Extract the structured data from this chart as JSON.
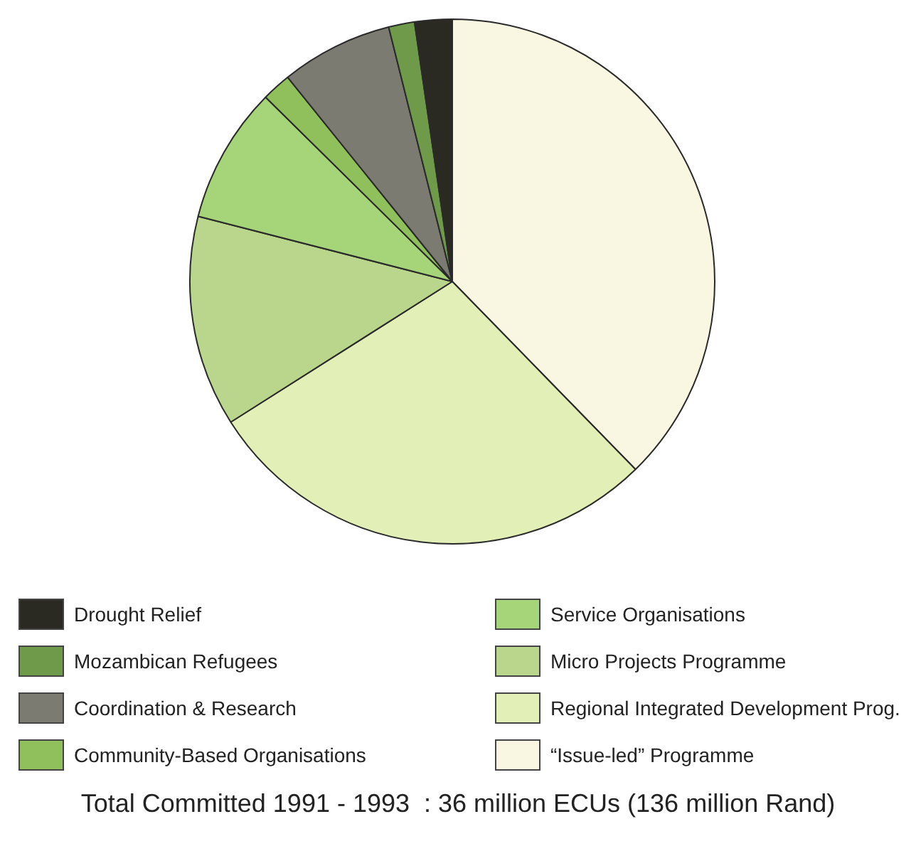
{
  "chart_data": {
    "type": "pie",
    "categories": [
      "“Issue-led” Programme",
      "Regional Integrated Development Prog.",
      "Micro Projects Programme",
      "Service Organisations",
      "Community-Based Organisations",
      "Coordination & Research",
      "Mozambican Refugees",
      "Drought Relief"
    ],
    "values": [
      37.7,
      28.3,
      13.0,
      8.4,
      1.8,
      6.9,
      1.6,
      2.3
    ],
    "colors": [
      "#f9f7e1",
      "#e2efb6",
      "#b9d68c",
      "#a6d479",
      "#8fc05c",
      "#7b7b72",
      "#6e9a4a",
      "#2b2a22"
    ],
    "legend": "bottom",
    "annotations": [
      "Total Committed 1991 - 1993  : 36 million ECUs (136 million Rand)"
    ]
  }
}
